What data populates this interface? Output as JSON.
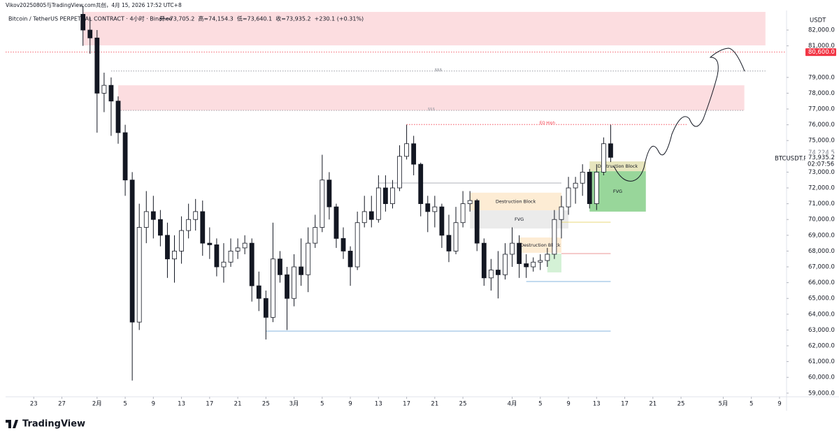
{
  "header": "Vikov20250805与TradingView.com共创，4月 15, 2026 17:52 UTC+8",
  "brand": "TradingView",
  "chart_data": {
    "type": "candlestick",
    "title": "Bitcoin / TetherUS PERPETUAL CONTRACT · 4小时 · Binance",
    "ohlc_text": "开=73,705.2  高=74,154.3  低=73,640.1  收=73,935.2  +230.1 (+0.31%)",
    "currency": "USDT",
    "symbol": "BTCUSDT.P",
    "countdown": "02:07:56",
    "up_color": "#ffffff",
    "down_color": "#131722",
    "border_color": "#131722",
    "grid": false,
    "x": [
      "2026-01-30",
      "2026-01-31",
      "2026-02-01",
      "2026-02-02",
      "2026-02-03",
      "2026-02-04",
      "2026-02-05",
      "2026-02-06",
      "2026-02-07",
      "2026-02-08",
      "2026-02-09",
      "2026-02-10",
      "2026-02-11",
      "2026-02-12",
      "2026-02-13",
      "2026-02-14",
      "2026-02-15",
      "2026-02-16",
      "2026-02-17",
      "2026-02-18",
      "2026-02-19",
      "2026-02-20",
      "2026-02-21",
      "2026-02-22",
      "2026-02-23",
      "2026-02-24",
      "2026-02-25",
      "2026-02-26",
      "2026-02-27",
      "2026-02-28",
      "2026-03-01",
      "2026-03-02",
      "2026-03-03",
      "2026-03-04",
      "2026-03-05",
      "2026-03-06",
      "2026-03-07",
      "2026-03-08",
      "2026-03-09",
      "2026-03-10",
      "2026-03-11",
      "2026-03-12",
      "2026-03-13",
      "2026-03-14",
      "2026-03-15",
      "2026-03-16",
      "2026-03-17",
      "2026-03-18",
      "2026-03-19",
      "2026-03-20",
      "2026-03-21",
      "2026-03-22",
      "2026-03-23",
      "2026-03-24",
      "2026-03-25",
      "2026-03-26",
      "2026-03-27",
      "2026-03-28",
      "2026-03-29",
      "2026-03-30",
      "2026-03-31",
      "2026-04-01",
      "2026-04-02",
      "2026-04-03",
      "2026-04-04",
      "2026-04-05",
      "2026-04-06",
      "2026-04-07",
      "2026-04-08",
      "2026-04-09",
      "2026-04-10",
      "2026-04-11",
      "2026-04-12",
      "2026-04-13",
      "2026-04-14",
      "2026-04-15"
    ],
    "open": [
      83000,
      82000,
      81500,
      78000,
      78500,
      77500,
      75500,
      72500,
      63500,
      69500,
      70500,
      70000,
      69000,
      67500,
      68000,
      69300,
      70000,
      70500,
      68500,
      68400,
      67000,
      67300,
      68000,
      68200,
      68500,
      65800,
      65000,
      63800,
      67500,
      66500,
      65000,
      67000,
      66500,
      68500,
      69500,
      72500,
      70800,
      68800,
      68000,
      67000,
      69800,
      70500,
      70000,
      72000,
      71000,
      72000,
      74000,
      74800,
      73500,
      71000,
      70500,
      70800,
      69000,
      68000,
      69800,
      71000,
      71200,
      68500,
      66300,
      66800,
      66500,
      67800,
      68500,
      67200,
      67000,
      67300,
      67400,
      67800,
      70000,
      70800,
      72000,
      72300,
      73000,
      71000,
      73000,
      74800
    ],
    "high": [
      83500,
      82800,
      82000,
      79300,
      79000,
      77800,
      76000,
      73000,
      71000,
      71800,
      71500,
      70600,
      69800,
      69000,
      70200,
      71000,
      71300,
      71200,
      69500,
      68800,
      68500,
      68800,
      68800,
      69000,
      68800,
      66700,
      65500,
      69800,
      68000,
      67000,
      67800,
      68800,
      69500,
      70300,
      74100,
      73000,
      71000,
      69500,
      68300,
      70500,
      71500,
      71500,
      72800,
      72800,
      72500,
      74700,
      76000,
      75300,
      73600,
      71500,
      71500,
      71000,
      70300,
      70800,
      71800,
      71800,
      71300,
      68800,
      67500,
      68000,
      68500,
      69500,
      69000,
      67800,
      67600,
      67800,
      68200,
      70600,
      71500,
      72700,
      72700,
      73500,
      73200,
      73500,
      75200,
      76000
    ],
    "low": [
      81000,
      80500,
      75500,
      76800,
      75300,
      74800,
      71500,
      59800,
      63000,
      68500,
      68800,
      68300,
      66300,
      66000,
      67200,
      68800,
      69300,
      67700,
      67500,
      66400,
      66000,
      67000,
      67500,
      67800,
      64800,
      64200,
      62400,
      63500,
      66000,
      63000,
      64500,
      65800,
      65400,
      68200,
      69200,
      70000,
      68200,
      67500,
      65800,
      66800,
      69500,
      69500,
      69800,
      70500,
      70700,
      71800,
      73800,
      72800,
      70200,
      69200,
      69500,
      68200,
      67300,
      67800,
      69500,
      70500,
      68000,
      65800,
      65500,
      65000,
      66200,
      67000,
      66300,
      66300,
      66700,
      66800,
      67000,
      67500,
      68800,
      70300,
      71000,
      71500,
      70700,
      70600,
      72800,
      73640
    ],
    "close": [
      82000,
      81500,
      78000,
      78500,
      77500,
      75500,
      72500,
      63500,
      69500,
      70500,
      70000,
      69000,
      67500,
      68000,
      69300,
      70000,
      70500,
      68500,
      68400,
      67000,
      67300,
      68000,
      68200,
      68500,
      65800,
      65000,
      63800,
      67500,
      66500,
      65000,
      67000,
      66500,
      68500,
      69500,
      72500,
      70800,
      68800,
      68000,
      67000,
      69800,
      70500,
      70000,
      72000,
      71000,
      72000,
      74000,
      74800,
      73500,
      71000,
      70500,
      70800,
      69000,
      68000,
      69800,
      71000,
      71200,
      68500,
      66300,
      66800,
      66500,
      67800,
      68500,
      67200,
      67000,
      67300,
      67400,
      67800,
      70000,
      70800,
      72000,
      72300,
      73000,
      71000,
      73000,
      74800,
      73935.2
    ],
    "xlim": [
      "2026-01-19",
      "2026-05-10"
    ],
    "xticks": [
      {
        "value": "2026-01-23",
        "label": "23"
      },
      {
        "value": "2026-01-27",
        "label": "27"
      },
      {
        "value": "2026-02-01",
        "label": "2月"
      },
      {
        "value": "2026-02-05",
        "label": "5"
      },
      {
        "value": "2026-02-09",
        "label": "9"
      },
      {
        "value": "2026-02-13",
        "label": "13"
      },
      {
        "value": "2026-02-17",
        "label": "17"
      },
      {
        "value": "2026-02-21",
        "label": "21"
      },
      {
        "value": "2026-02-25",
        "label": "25"
      },
      {
        "value": "2026-03-01",
        "label": "3月"
      },
      {
        "value": "2026-03-05",
        "label": "5"
      },
      {
        "value": "2026-03-09",
        "label": "9"
      },
      {
        "value": "2026-03-13",
        "label": "13"
      },
      {
        "value": "2026-03-17",
        "label": "17"
      },
      {
        "value": "2026-03-21",
        "label": "21"
      },
      {
        "value": "2026-03-25",
        "label": "25"
      },
      {
        "value": "2026-04-01",
        "label": "4月"
      },
      {
        "value": "2026-04-05",
        "label": "5"
      },
      {
        "value": "2026-04-09",
        "label": "9"
      },
      {
        "value": "2026-04-13",
        "label": "13"
      },
      {
        "value": "2026-04-17",
        "label": "17"
      },
      {
        "value": "2026-04-21",
        "label": "21"
      },
      {
        "value": "2026-04-25",
        "label": "25"
      },
      {
        "value": "2026-05-01",
        "label": "5月"
      },
      {
        "value": "2026-05-05",
        "label": "5"
      },
      {
        "value": "2026-05-09",
        "label": "9"
      }
    ],
    "ylim": [
      58770,
      83240
    ],
    "yticks": [
      {
        "value": 59000,
        "label": "59,000.0"
      },
      {
        "value": 60000,
        "label": "60,000.0"
      },
      {
        "value": 61000,
        "label": "61,000.0"
      },
      {
        "value": 62000,
        "label": "62,000.0"
      },
      {
        "value": 63000,
        "label": "63,000.0"
      },
      {
        "value": 64000,
        "label": "64,000.0"
      },
      {
        "value": 65000,
        "label": "65,000.0"
      },
      {
        "value": 66000,
        "label": "66,000.0"
      },
      {
        "value": 67000,
        "label": "67,000.0"
      },
      {
        "value": 68000,
        "label": "68,000.0"
      },
      {
        "value": 69000,
        "label": "69,000.0"
      },
      {
        "value": 70000,
        "label": "70,000.0"
      },
      {
        "value": 71000,
        "label": "71,000.0"
      },
      {
        "value": 72000,
        "label": "72,000.0"
      },
      {
        "value": 73000,
        "label": "73,000.0"
      },
      {
        "value": 75000,
        "label": "75,000.0"
      },
      {
        "value": 76000,
        "label": "76,000.0"
      },
      {
        "value": 77000,
        "label": "77,000.0"
      },
      {
        "value": 78000,
        "label": "78,000.0"
      },
      {
        "value": 79000,
        "label": "79,000.0"
      },
      {
        "value": 81000,
        "label": "81,000.0"
      },
      {
        "value": 82000,
        "label": "82,000.0"
      }
    ],
    "price_labels": [
      {
        "value": 80600,
        "label": "80,600.0",
        "color": "#f23645"
      },
      {
        "value": 74224.5,
        "label": "74,224.5",
        "color": "#ffffff"
      },
      {
        "value": 73935.2,
        "label": "73,935.2",
        "color": "#ffffff"
      }
    ],
    "zones": [
      {
        "x": [
          "2026-01-30",
          "2026-05-07"
        ],
        "y": [
          81030,
          83150
        ],
        "color": "#fcd7da"
      },
      {
        "x": [
          "2026-02-04",
          "2026-05-04"
        ],
        "y": [
          76910,
          78500
        ],
        "color": "#fcd7da"
      },
      {
        "x": [
          "2026-03-26",
          "2026-04-08"
        ],
        "y": [
          70580,
          71700
        ],
        "color": "#fde9cc",
        "label": "Destruction Block"
      },
      {
        "x": [
          "2026-03-26",
          "2026-04-09"
        ],
        "y": [
          69430,
          70580
        ],
        "color": "#e8e8e8",
        "label": "FVG"
      },
      {
        "x": [
          "2026-04-02",
          "2026-04-08"
        ],
        "y": [
          67890,
          68860
        ],
        "color": "#fde9cc",
        "label": "Destruction Block"
      },
      {
        "x": [
          "2026-04-06",
          "2026-04-08"
        ],
        "y": [
          66650,
          67840
        ],
        "color": "#cdeecf"
      },
      {
        "x": [
          "2026-04-12",
          "2026-04-20"
        ],
        "y": [
          70500,
          73060
        ],
        "color": "#86cf88",
        "label": "FVG"
      },
      {
        "x": [
          "2026-04-12",
          "2026-04-20"
        ],
        "y": [
          73060,
          73680
        ],
        "color": "#e3e0b3",
        "label": "Destruction Block"
      }
    ],
    "levels": [
      {
        "value": 80600,
        "color": "#f23645",
        "style": "dotted"
      },
      {
        "x": [
          "2026-02-03",
          "2026-05-07"
        ],
        "value": 79400,
        "color": "#787b86",
        "style": "dotted",
        "label": "$$$"
      },
      {
        "x": [
          "2026-02-04",
          "2026-05-04"
        ],
        "value": 76910,
        "color": "#9598a1",
        "style": "dotted",
        "label": "$$$"
      },
      {
        "x": [
          "2026-03-17",
          "2026-04-26"
        ],
        "value": 76020,
        "color": "#f23645",
        "style": "dotted",
        "label": "EQ High"
      },
      {
        "x": [
          "2026-03-13",
          "2026-04-08"
        ],
        "value": 72310,
        "color": "#9598a1",
        "style": "solid"
      },
      {
        "x": [
          "2026-02-25",
          "2026-04-15"
        ],
        "value": 62930,
        "color": "#5b9bd5",
        "style": "solid"
      },
      {
        "x": [
          "2026-04-03",
          "2026-04-15"
        ],
        "value": 66070,
        "color": "#5b9bd5",
        "style": "solid"
      },
      {
        "x": [
          "2026-04-08",
          "2026-04-15"
        ],
        "value": 67840,
        "color": "#e57373",
        "style": "solid"
      },
      {
        "x": [
          "2026-04-08",
          "2026-04-15"
        ],
        "value": 69830,
        "color": "#e6d36a",
        "style": "solid"
      }
    ]
  }
}
